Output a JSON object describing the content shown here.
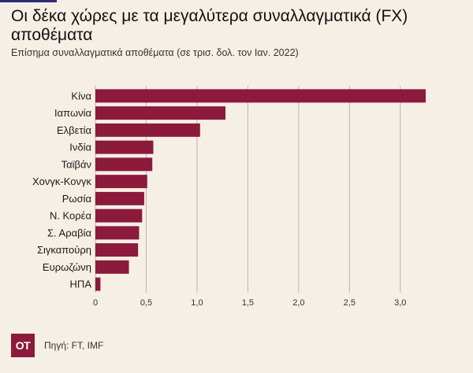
{
  "page": {
    "background": "#f6efe6",
    "accent": "#8b1a3c"
  },
  "header": {
    "title": "Οι δέκα χώρες με τα μεγαλύτερα συναλλαγματικά (FX) αποθέματα",
    "subtitle": "Επίσημα συναλλαγματικά αποθέματα (σε τρισ. δολ. τον Ιαν. 2022)"
  },
  "footer": {
    "logo_text": "ΟΤ",
    "source": "Πηγή: FT, IMF"
  },
  "chart_data": {
    "type": "bar",
    "orientation": "horizontal",
    "categories": [
      "Κίνα",
      "Ιαπωνία",
      "Ελβετία",
      "Ινδία",
      "Ταϊβάν",
      "Χονγκ-Κονγκ",
      "Ρωσία",
      "Ν. Κορέα",
      "Σ. Αραβία",
      "Σιγκαπούρη",
      "Ευρωζώνη",
      "ΗΠΑ"
    ],
    "values": [
      3.25,
      1.28,
      1.03,
      0.57,
      0.56,
      0.51,
      0.48,
      0.46,
      0.43,
      0.42,
      0.33,
      0.05
    ],
    "xlim": [
      0,
      3.25
    ],
    "ticks": [
      0,
      0.5,
      1.0,
      1.5,
      2.0,
      2.5,
      3.0
    ],
    "tick_labels": [
      "0",
      "0,5",
      "1,0",
      "1,5",
      "2,0",
      "2,5",
      "3,0"
    ],
    "grid": true,
    "bar_color": "#8b1a3c"
  }
}
